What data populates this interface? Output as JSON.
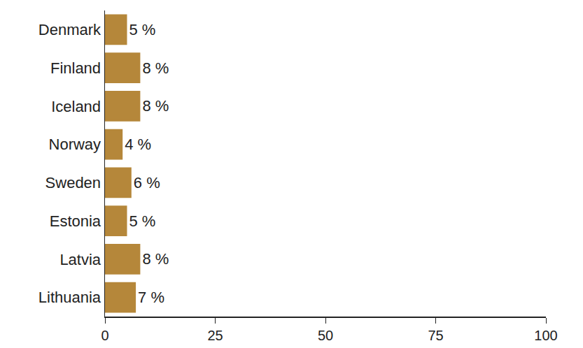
{
  "chart_data": {
    "type": "bar",
    "orientation": "horizontal",
    "categories": [
      "Denmark",
      "Finland",
      "Iceland",
      "Norway",
      "Sweden",
      "Estonia",
      "Latvia",
      "Lithuania"
    ],
    "values": [
      5,
      8,
      8,
      4,
      6,
      5,
      8,
      7
    ],
    "value_labels": [
      "5 %",
      "8 %",
      "8 %",
      "4 %",
      "6 %",
      "5 %",
      "8 %",
      "7 %"
    ],
    "data_labels": true,
    "color": "#b5873a",
    "xlim": [
      0,
      100
    ],
    "xticks": [
      0,
      25,
      50,
      75,
      100
    ],
    "grid": false
  }
}
